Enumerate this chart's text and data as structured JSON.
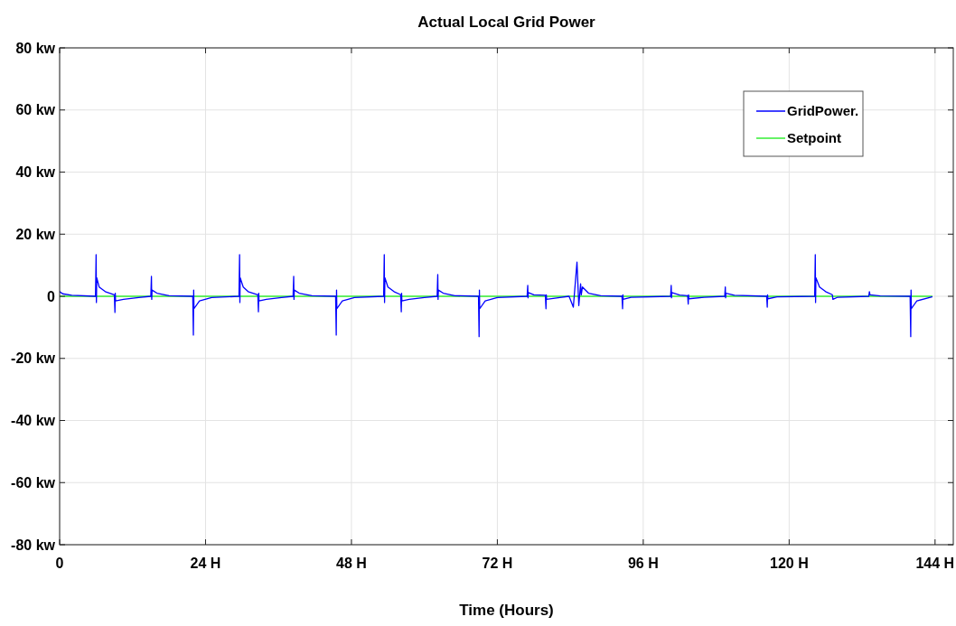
{
  "chart_data": {
    "type": "line",
    "title": "Actual Local Grid Power",
    "xlabel": "Time (Hours)",
    "xlim": [
      0,
      147
    ],
    "xticks": [
      0,
      {
        "value": 24,
        "label": "24 H"
      },
      {
        "value": 48,
        "label": "48 H"
      },
      {
        "value": 72,
        "label": "72 H"
      },
      {
        "value": 96,
        "label": "96 H"
      },
      {
        "value": 120,
        "label": "120 H"
      },
      {
        "value": 144,
        "label": "144 H"
      }
    ],
    "ylim": [
      -80,
      80
    ],
    "yticks": [
      {
        "value": -80,
        "label": "-80 kw"
      },
      {
        "value": -60,
        "label": "-60 kw"
      },
      {
        "value": -40,
        "label": "-40 kw"
      },
      {
        "value": -20,
        "label": "-20 kw"
      },
      0,
      {
        "value": 20,
        "label": "20 kw"
      },
      {
        "value": 40,
        "label": "40 kw"
      },
      {
        "value": 60,
        "label": "60 kw"
      },
      {
        "value": 80,
        "label": "80 kw"
      }
    ],
    "grid": true,
    "legend": "top right",
    "line_style": "solid",
    "marker": "none",
    "series": [
      {
        "name": "GridPower.",
        "color": "#0000ff",
        "x": [
          0,
          0.5,
          2,
          5.9,
          6,
          6.05,
          6.1,
          6.5,
          7.5,
          9,
          9.1,
          9.15,
          9.2,
          10.5,
          13,
          15,
          15.1,
          15.15,
          15.2,
          16,
          18,
          21.9,
          22,
          22.05,
          22.1,
          23,
          25,
          29.5,
          29.6,
          29.65,
          29.7,
          30.2,
          31,
          32.6,
          32.7,
          32.75,
          32.8,
          34,
          36.5,
          38.4,
          38.5,
          38.55,
          38.6,
          39.4,
          41.5,
          45.4,
          45.5,
          45.55,
          45.6,
          46.5,
          48.5,
          53.3,
          53.4,
          53.45,
          53.5,
          54,
          55,
          56.1,
          56.2,
          56.25,
          56.3,
          57.5,
          60,
          62.1,
          62.2,
          62.25,
          62.3,
          63.1,
          65,
          68.9,
          69,
          69.05,
          69.1,
          70,
          72,
          76.9,
          77,
          77.05,
          77.1,
          78,
          79.9,
          80,
          80.05,
          80.1,
          82,
          83.8,
          84.5,
          85.1,
          85.4,
          85.7,
          85.8,
          86,
          87,
          89,
          92.5,
          92.6,
          92.65,
          92.7,
          94,
          100.5,
          100.6,
          100.65,
          100.7,
          102,
          103.3,
          103.4,
          103.45,
          103.5,
          106,
          109.4,
          109.5,
          109.55,
          109.6,
          111,
          116.3,
          116.4,
          116.45,
          116.5,
          118,
          124.2,
          124.3,
          124.35,
          124.4,
          125,
          126,
          127.1,
          127.2,
          128,
          133.1,
          133.2,
          133.3,
          135,
          139.9,
          140,
          140.05,
          140.1,
          141,
          143.5
        ],
        "values": [
          1.5,
          0.8,
          0.3,
          0,
          13.4,
          -2,
          6,
          3,
          1.5,
          0.5,
          -5.2,
          1,
          -1.5,
          -1,
          -0.4,
          0,
          6.4,
          -1,
          2,
          1,
          0.2,
          0,
          -12.5,
          2,
          -4,
          -1.5,
          -0.4,
          0,
          13.4,
          -2,
          6,
          3,
          1.5,
          0.5,
          -5,
          1,
          -1.5,
          -1,
          -0.4,
          0,
          6.4,
          -1,
          2,
          1,
          0.2,
          0,
          -12.5,
          2,
          -4,
          -1.5,
          -0.4,
          0,
          13.4,
          -2,
          6,
          3,
          1.5,
          0.5,
          -5,
          1,
          -1.5,
          -1,
          -0.4,
          0,
          7,
          -1,
          2,
          1,
          0.2,
          0,
          -13,
          2,
          -4,
          -1.5,
          -0.4,
          0,
          3.5,
          -0.5,
          1.2,
          0.5,
          0.3,
          -4,
          0.5,
          -1,
          -0.5,
          0,
          -3.5,
          11,
          -3,
          4,
          0.5,
          3,
          1,
          0.2,
          0,
          -4,
          0.5,
          -1,
          -0.3,
          0,
          3.5,
          -0.5,
          1.2,
          0.4,
          0.2,
          -2.5,
          0.5,
          -0.8,
          -0.3,
          0,
          3,
          -0.5,
          1,
          0.3,
          0,
          -3.5,
          0.5,
          -0.8,
          -0.2,
          0,
          13.4,
          -2,
          6,
          3,
          1.5,
          0.5,
          -1,
          -0.3,
          0,
          1.5,
          0.5,
          0.1,
          0,
          -13,
          2,
          -4,
          -1.5,
          -0.2
        ]
      },
      {
        "name": "Setpoint",
        "color": "#33ee33",
        "x": [
          0,
          143.5
        ],
        "values": [
          0,
          0
        ]
      }
    ]
  }
}
